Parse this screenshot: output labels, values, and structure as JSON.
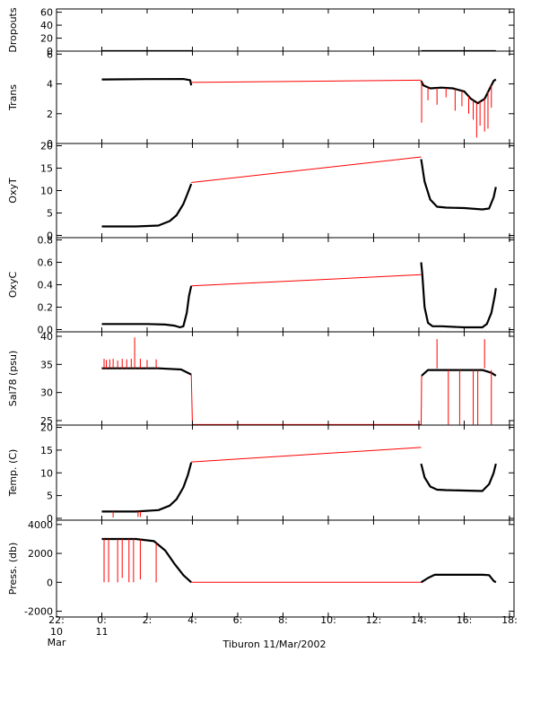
{
  "colors": {
    "background": "#ffffff",
    "axes": "#000000",
    "data": "#000000",
    "interp": "#ff0000"
  },
  "chart_data": {
    "type": "line",
    "title": "Tiburon 11/Mar/2002",
    "x_axis": {
      "label": "Tiburon 11/Mar/2002",
      "range_hours": [
        -2,
        18.2
      ],
      "ticks": [
        {
          "h": -2,
          "label": "22:",
          "sub": [
            "10",
            "Mar"
          ]
        },
        {
          "h": 0,
          "label": "0:",
          "sub": [
            "11"
          ]
        },
        {
          "h": 2,
          "label": "2:"
        },
        {
          "h": 4,
          "label": "4:"
        },
        {
          "h": 6,
          "label": "6:"
        },
        {
          "h": 8,
          "label": "8:"
        },
        {
          "h": 10,
          "label": "10:"
        },
        {
          "h": 12,
          "label": "12:"
        },
        {
          "h": 14,
          "label": "14:"
        },
        {
          "h": 16,
          "label": "16:"
        },
        {
          "h": 18,
          "label": "18:"
        }
      ]
    },
    "panels": [
      {
        "name": "dropouts",
        "ylabel": "Dropouts",
        "ylim": [
          0,
          65
        ],
        "ticks": [
          {
            "v": 0,
            "label": "0"
          },
          {
            "v": 20,
            "label": "20"
          },
          {
            "v": 40,
            "label": "40"
          },
          {
            "v": 60,
            "label": "60"
          }
        ],
        "series": [
          {
            "name": "data",
            "x": [
              0,
              4
            ],
            "y": [
              0,
              0
            ]
          },
          {
            "name": "interp",
            "x": [
              4,
              14.1
            ],
            "y": [
              0,
              -3
            ]
          },
          {
            "name": "data",
            "x": [
              14.1,
              17.4
            ],
            "y": [
              0,
              0
            ]
          }
        ]
      },
      {
        "name": "trans",
        "ylabel": "Trans",
        "ylim": [
          0,
          6.2
        ],
        "ticks": [
          {
            "v": 0,
            "label": "0"
          },
          {
            "v": 2,
            "label": "2"
          },
          {
            "v": 4,
            "label": "4"
          },
          {
            "v": 6,
            "label": "6"
          }
        ],
        "series": [
          {
            "name": "data",
            "x": [
              0,
              2,
              3.6,
              3.9,
              3.95
            ],
            "y": [
              4.3,
              4.32,
              4.33,
              4.25,
              3.9
            ]
          },
          {
            "name": "interp",
            "x": [
              3.95,
              14.1
            ],
            "y": [
              4.1,
              4.25
            ]
          },
          {
            "name": "data",
            "x": [
              14.1,
              14.2,
              14.5,
              15,
              15.5,
              16,
              16.3,
              16.6,
              16.9,
              17.1,
              17.3,
              17.4
            ],
            "y": [
              4.2,
              3.9,
              3.7,
              3.75,
              3.7,
              3.5,
              3.0,
              2.7,
              3.0,
              3.6,
              4.2,
              4.3
            ]
          },
          {
            "name": "spikes",
            "x": [
              14.12,
              14.4,
              14.8,
              15.2,
              15.6,
              15.9,
              16.2,
              16.4,
              16.55,
              16.7,
              16.9,
              17.05,
              17.2
            ],
            "y": [
              1.4,
              2.9,
              2.6,
              3.1,
              2.2,
              2.5,
              2.0,
              1.6,
              0.4,
              1.2,
              0.8,
              1.0,
              2.4
            ]
          }
        ]
      },
      {
        "name": "oxyt",
        "ylabel": "OxyT",
        "ylim": [
          -0.5,
          20.5
        ],
        "ticks": [
          {
            "v": 0,
            "label": "0"
          },
          {
            "v": 5,
            "label": "5"
          },
          {
            "v": 10,
            "label": "10"
          },
          {
            "v": 15,
            "label": "15"
          },
          {
            "v": 20,
            "label": "20"
          }
        ],
        "series": [
          {
            "name": "data",
            "x": [
              0,
              1.5,
              2.5,
              3.0,
              3.3,
              3.6,
              3.8,
              3.95
            ],
            "y": [
              2.0,
              2.0,
              2.2,
              3.2,
              4.5,
              7.0,
              9.5,
              11.5
            ]
          },
          {
            "name": "interp",
            "x": [
              3.95,
              14.1
            ],
            "y": [
              11.8,
              17.5
            ]
          },
          {
            "name": "data",
            "x": [
              14.1,
              14.25,
              14.5,
              14.8,
              15.2,
              16,
              16.8,
              17.1,
              17.3,
              17.4
            ],
            "y": [
              17.0,
              12.0,
              8.0,
              6.4,
              6.2,
              6.1,
              5.8,
              6.0,
              8.5,
              10.8
            ]
          }
        ]
      },
      {
        "name": "oxyc",
        "ylabel": "OxyC",
        "ylim": [
          -0.02,
          0.82
        ],
        "ticks": [
          {
            "v": 0.0,
            "label": "0.0"
          },
          {
            "v": 0.2,
            "label": "0.2"
          },
          {
            "v": 0.4,
            "label": "0.4"
          },
          {
            "v": 0.6,
            "label": "0.6"
          },
          {
            "v": 0.8,
            "label": "0.8"
          }
        ],
        "series": [
          {
            "name": "data",
            "x": [
              0,
              2,
              2.8,
              3.2,
              3.45,
              3.6,
              3.75,
              3.85,
              3.95
            ],
            "y": [
              0.05,
              0.05,
              0.045,
              0.035,
              0.02,
              0.03,
              0.15,
              0.3,
              0.39
            ]
          },
          {
            "name": "interp",
            "x": [
              3.95,
              14.1
            ],
            "y": [
              0.39,
              0.49
            ]
          },
          {
            "name": "data",
            "x": [
              14.1,
              14.15,
              14.25,
              14.4,
              14.6,
              15,
              16,
              16.8,
              17.0,
              17.2,
              17.35,
              17.4
            ],
            "y": [
              0.6,
              0.5,
              0.2,
              0.06,
              0.03,
              0.03,
              0.02,
              0.02,
              0.05,
              0.15,
              0.3,
              0.37
            ]
          }
        ]
      },
      {
        "name": "sal78",
        "ylabel": "Sal78 (psu)",
        "ylim": [
          24.2,
          40.8
        ],
        "ticks": [
          {
            "v": 25,
            "label": "25"
          },
          {
            "v": 30,
            "label": "30"
          },
          {
            "v": 35,
            "label": "35"
          },
          {
            "v": 40,
            "label": "40"
          }
        ],
        "series": [
          {
            "name": "data",
            "x": [
              0,
              2.5,
              3.5,
              3.95
            ],
            "y": [
              34.3,
              34.3,
              34.1,
              33.2
            ]
          },
          {
            "name": "interp",
            "x": [
              3.95,
              4.0,
              14.1,
              14.12
            ],
            "y": [
              33.2,
              24.3,
              24.3,
              33.0
            ]
          },
          {
            "name": "data",
            "x": [
              14.12,
              14.4,
              16.8,
              17.2,
              17.4
            ],
            "y": [
              33.0,
              34.0,
              34.0,
              33.5,
              33.0
            ]
          },
          {
            "name": "spikes",
            "x": [
              0.1,
              0.2,
              0.35,
              0.5,
              0.7,
              0.9,
              1.1,
              1.3,
              1.45,
              1.7,
              2.0,
              2.4,
              14.8,
              15.3,
              15.8,
              16.4,
              16.6,
              16.9,
              17.2
            ],
            "y": [
              36,
              35.8,
              35.9,
              36,
              35.7,
              36,
              35.9,
              36,
              39.8,
              36,
              35.8,
              35.9,
              39.5,
              24.3,
              24.3,
              24.3,
              24.3,
              39.5,
              24.3
            ]
          }
        ]
      },
      {
        "name": "temp",
        "ylabel": "Temp. (C)",
        "ylim": [
          -0.4,
          20.5
        ],
        "ticks": [
          {
            "v": 0,
            "label": "0"
          },
          {
            "v": 5,
            "label": "5"
          },
          {
            "v": 10,
            "label": "10"
          },
          {
            "v": 15,
            "label": "15"
          },
          {
            "v": 20,
            "label": "20"
          }
        ],
        "series": [
          {
            "name": "data",
            "x": [
              0,
              1.5,
              2.5,
              3.0,
              3.3,
              3.6,
              3.8,
              3.95
            ],
            "y": [
              1.5,
              1.5,
              1.8,
              2.8,
              4.2,
              6.8,
              9.5,
              12.3
            ]
          },
          {
            "name": "interp",
            "x": [
              3.95,
              14.1
            ],
            "y": [
              12.4,
              15.6
            ]
          },
          {
            "name": "data",
            "x": [
              14.1,
              14.25,
              14.5,
              14.8,
              15.2,
              16,
              16.8,
              17.1,
              17.3,
              17.4
            ],
            "y": [
              12.0,
              9.0,
              7.0,
              6.3,
              6.2,
              6.1,
              6.0,
              7.5,
              10.0,
              12.0
            ]
          },
          {
            "name": "spikes",
            "x": [
              0.5,
              1.6,
              1.7
            ],
            "y": [
              0.2,
              0.3,
              0.3
            ]
          }
        ]
      },
      {
        "name": "press",
        "ylabel": "Press. (db)",
        "ylim": [
          -2400,
          4300
        ],
        "ticks": [
          {
            "v": -2000,
            "label": "-2000"
          },
          {
            "v": 0,
            "label": "0"
          },
          {
            "v": 2000,
            "label": "2000"
          },
          {
            "v": 4000,
            "label": "4000"
          }
        ],
        "series": [
          {
            "name": "data",
            "x": [
              0,
              1.5,
              2.3,
              2.8,
              3.2,
              3.6,
              3.95
            ],
            "y": [
              3000,
              3000,
              2850,
              2200,
              1300,
              500,
              0
            ]
          },
          {
            "name": "interp",
            "x": [
              3.95,
              14.1
            ],
            "y": [
              0,
              0
            ]
          },
          {
            "name": "data",
            "x": [
              14.1,
              14.4,
              14.7,
              16.8,
              17.1,
              17.3,
              17.4
            ],
            "y": [
              0,
              300,
              520,
              520,
              500,
              100,
              0
            ]
          },
          {
            "name": "spikes",
            "x": [
              0.1,
              0.3,
              0.7,
              0.9,
              1.2,
              1.4,
              1.7,
              2.4
            ],
            "y": [
              0,
              0,
              0,
              300,
              0,
              0,
              200,
              0
            ]
          }
        ]
      }
    ]
  }
}
